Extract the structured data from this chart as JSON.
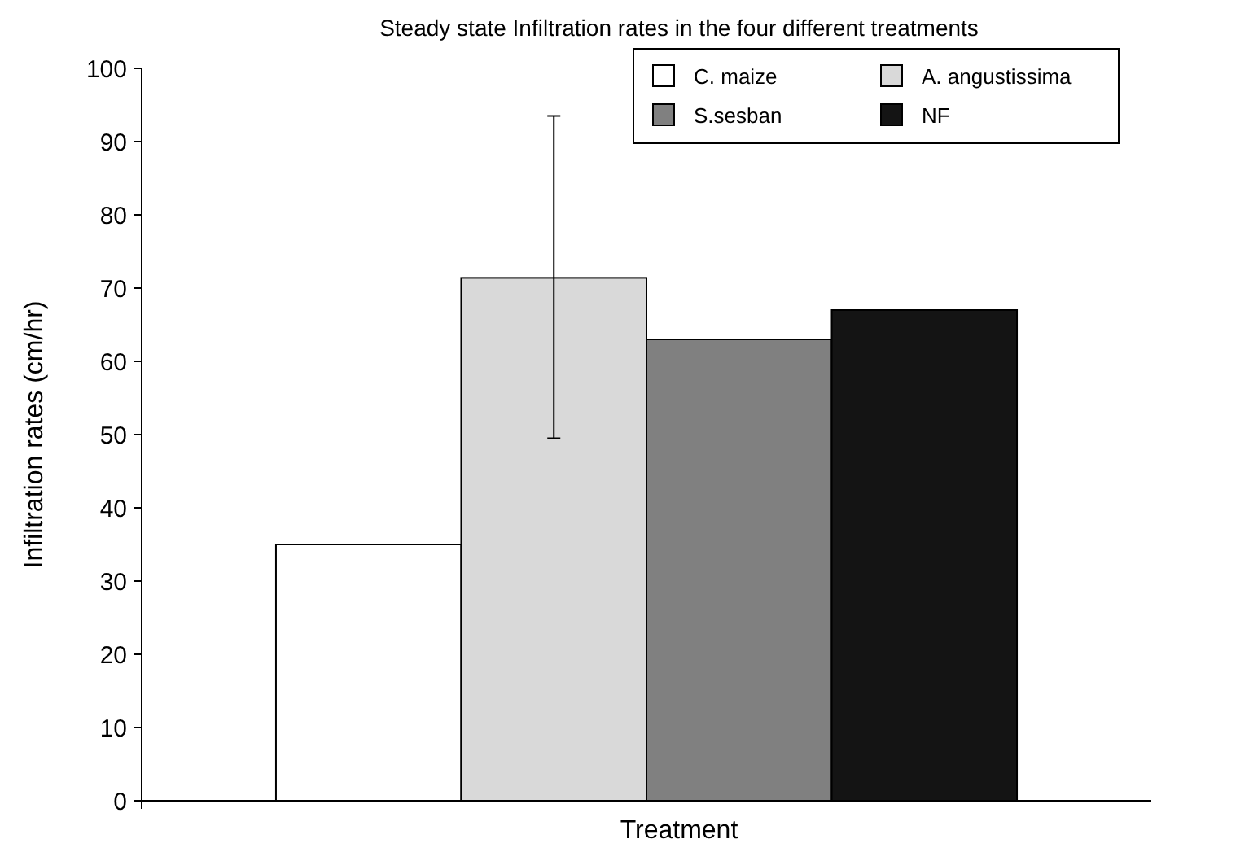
{
  "chart_data": {
    "type": "bar",
    "title": "Steady state Infiltration rates in the four different treatments",
    "xlabel": "Treatment",
    "ylabel": "Infiltration rates (cm/hr)",
    "categories": [
      null
    ],
    "series": [
      {
        "name": "C. maize",
        "color": "#ffffff",
        "values": [
          35
        ]
      },
      {
        "name": "A. angustissima",
        "color": "#d9d9d9",
        "values": [
          71.4
        ],
        "errors": [
          [
            49.5,
            93.5
          ]
        ]
      },
      {
        "name": "S.sesban",
        "color": "#808080",
        "values": [
          63
        ]
      },
      {
        "name": "NF",
        "color": "#141414",
        "values": [
          67
        ]
      }
    ],
    "ylim": [
      0,
      100
    ],
    "yticks": [
      0,
      10,
      20,
      30,
      40,
      50,
      60,
      70,
      80,
      90,
      100
    ],
    "grid": false,
    "legend": "top right"
  }
}
